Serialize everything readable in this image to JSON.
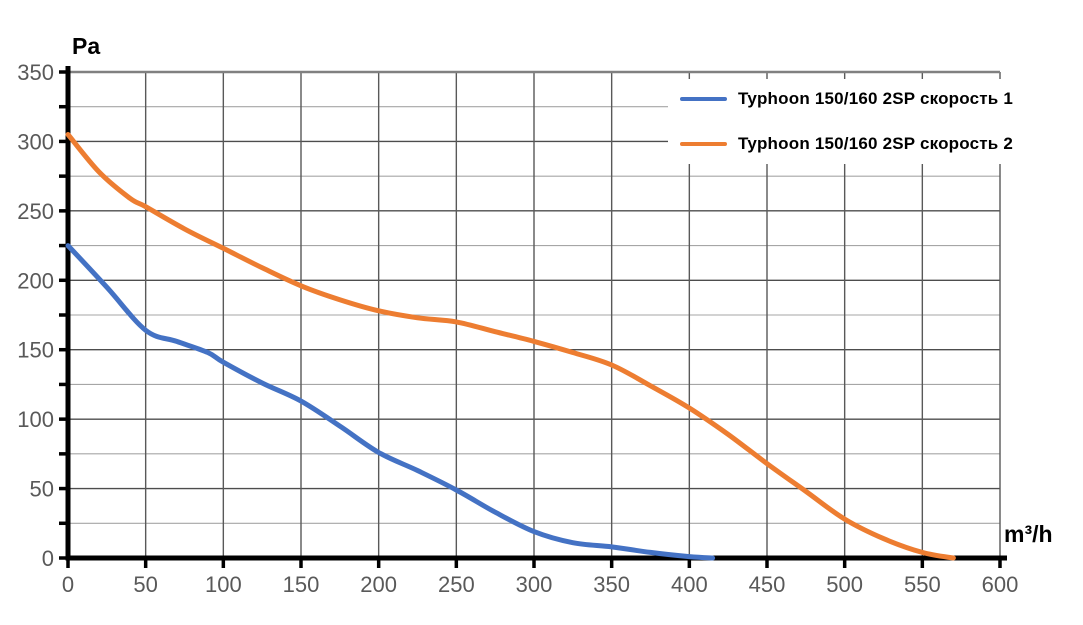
{
  "chart_data": {
    "type": "line",
    "title": "",
    "xlabel": "m³/h",
    "ylabel": "Pa",
    "xlim": [
      0,
      600
    ],
    "ylim": [
      0,
      350
    ],
    "x_ticks": [
      0,
      50,
      100,
      150,
      200,
      250,
      300,
      350,
      400,
      450,
      500,
      550,
      600
    ],
    "y_ticks": [
      0,
      50,
      100,
      150,
      200,
      250,
      300,
      350
    ],
    "y_minor_ticks": [
      25,
      75,
      125,
      175,
      225,
      275,
      325
    ],
    "grid": "on",
    "legend_position": "top-right-inside",
    "series": [
      {
        "name": "Typhoon 150/160 2SP скорость 1",
        "color": "#4472C4",
        "points": [
          [
            0,
            225
          ],
          [
            25,
            195
          ],
          [
            50,
            164
          ],
          [
            70,
            156
          ],
          [
            90,
            148
          ],
          [
            100,
            141
          ],
          [
            125,
            126
          ],
          [
            150,
            113
          ],
          [
            175,
            95
          ],
          [
            200,
            76
          ],
          [
            225,
            63
          ],
          [
            250,
            49
          ],
          [
            275,
            33
          ],
          [
            300,
            19
          ],
          [
            325,
            11
          ],
          [
            350,
            8
          ],
          [
            375,
            4
          ],
          [
            400,
            1
          ],
          [
            415,
            0
          ]
        ]
      },
      {
        "name": "Typhoon 150/160 2SP скорость 2",
        "color": "#ED7D31",
        "points": [
          [
            0,
            305
          ],
          [
            20,
            278
          ],
          [
            40,
            259
          ],
          [
            50,
            253
          ],
          [
            75,
            237
          ],
          [
            100,
            223
          ],
          [
            125,
            209
          ],
          [
            150,
            196
          ],
          [
            175,
            186
          ],
          [
            200,
            178
          ],
          [
            225,
            173
          ],
          [
            250,
            170
          ],
          [
            275,
            163
          ],
          [
            300,
            156
          ],
          [
            325,
            148
          ],
          [
            350,
            139
          ],
          [
            375,
            124
          ],
          [
            400,
            108
          ],
          [
            425,
            89
          ],
          [
            450,
            68
          ],
          [
            475,
            48
          ],
          [
            500,
            28
          ],
          [
            525,
            14
          ],
          [
            550,
            4
          ],
          [
            570,
            0
          ]
        ]
      }
    ],
    "colors": {
      "axis": "#000000",
      "tick_label": "#595959",
      "axis_title": "#000000",
      "grid_major_h": "#4d4d4d",
      "grid_minor_h": "#a6a6a6",
      "grid_vertical": "#595959",
      "plot_top_border": "#808080",
      "background": "#ffffff"
    }
  }
}
